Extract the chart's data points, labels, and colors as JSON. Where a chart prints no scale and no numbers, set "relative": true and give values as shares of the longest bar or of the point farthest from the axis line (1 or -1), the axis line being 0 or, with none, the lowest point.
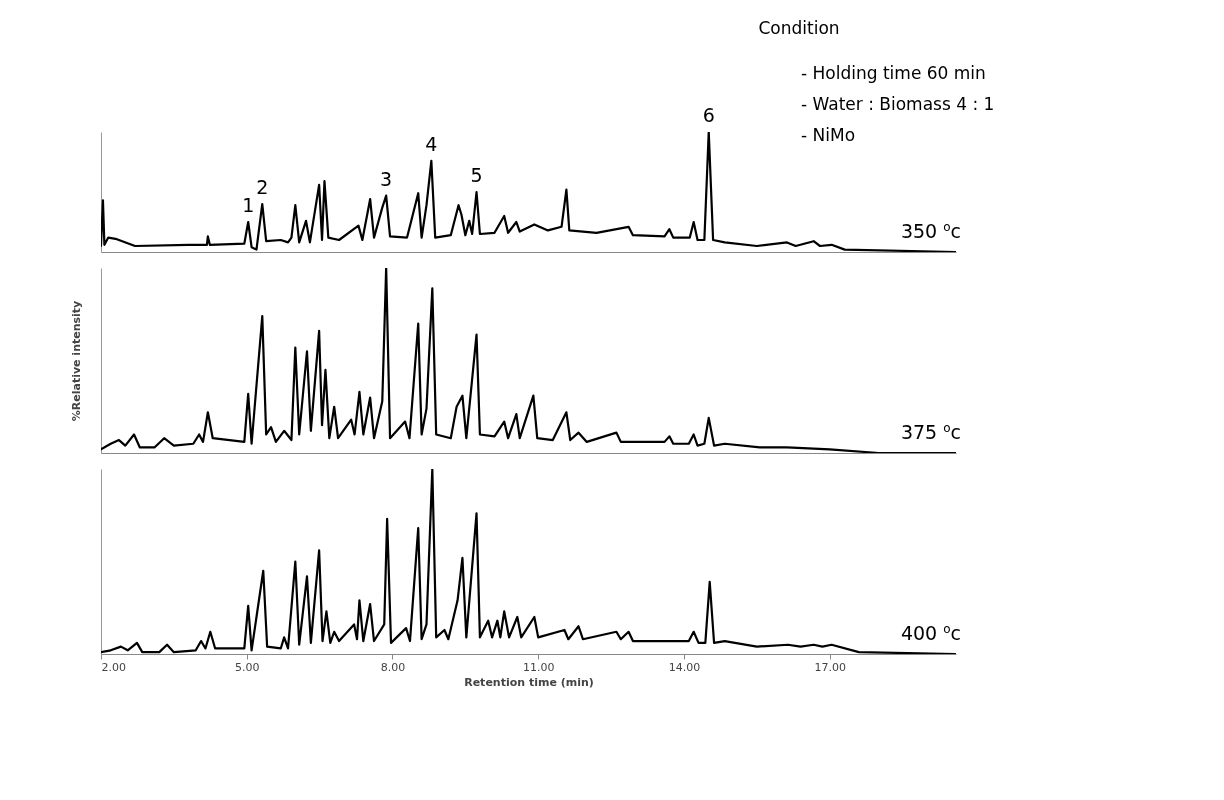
{
  "chart_data": [
    {
      "type": "line",
      "relative": true,
      "xlim": [
        2,
        19.6
      ],
      "tick_labels": false,
      "series": [
        {
          "color": "#000000",
          "x": [
            2.0,
            2.04,
            2.07,
            2.15,
            2.3,
            2.7,
            3.8,
            4.18,
            4.2,
            4.24,
            4.95,
            5.03,
            5.1,
            5.2,
            5.32,
            5.4,
            5.7,
            5.85,
            5.92,
            6.0,
            6.08,
            6.22,
            6.3,
            6.49,
            6.55,
            6.6,
            6.68,
            6.9,
            7.3,
            7.38,
            7.54,
            7.62,
            7.79,
            7.87,
            7.95,
            8.3,
            8.53,
            8.6,
            8.7,
            8.8,
            8.88,
            9.2,
            9.36,
            9.42,
            9.5,
            9.58,
            9.64,
            9.73,
            9.8,
            10.1,
            10.3,
            10.38,
            10.55,
            10.62,
            10.92,
            11.2,
            11.48,
            11.58,
            11.64,
            12.2,
            12.86,
            12.95,
            13.6,
            13.7,
            13.78,
            14.12,
            14.2,
            14.28,
            14.42,
            14.51,
            14.6,
            14.84,
            15.5,
            16.12,
            16.3,
            16.67,
            16.8,
            17.04,
            17.31,
            19.6
          ],
          "values": [
            0.05,
            0.43,
            0.06,
            0.12,
            0.11,
            0.05,
            0.06,
            0.06,
            0.13,
            0.06,
            0.07,
            0.25,
            0.04,
            0.02,
            0.4,
            0.09,
            0.1,
            0.08,
            0.12,
            0.39,
            0.08,
            0.26,
            0.08,
            0.56,
            0.1,
            0.59,
            0.12,
            0.1,
            0.22,
            0.1,
            0.44,
            0.12,
            0.37,
            0.47,
            0.13,
            0.12,
            0.49,
            0.12,
            0.39,
            0.76,
            0.12,
            0.14,
            0.39,
            0.31,
            0.14,
            0.26,
            0.15,
            0.5,
            0.15,
            0.16,
            0.3,
            0.16,
            0.25,
            0.17,
            0.23,
            0.18,
            0.21,
            0.52,
            0.18,
            0.16,
            0.21,
            0.14,
            0.13,
            0.19,
            0.12,
            0.12,
            0.25,
            0.1,
            0.1,
            1.0,
            0.1,
            0.08,
            0.05,
            0.08,
            0.05,
            0.09,
            0.05,
            0.06,
            0.02,
            0.0
          ]
        }
      ],
      "annotations": [
        "Condition",
        "-     Holding time 60 min",
        "-     Water : Biomass  4 : 1",
        "-     NiMo",
        {
          "text": "1",
          "x": 5.03,
          "y": 0.25
        },
        {
          "text": "2",
          "x": 5.32,
          "y": 0.4
        },
        {
          "text": "3",
          "x": 7.87,
          "y": 0.47
        },
        {
          "text": "4",
          "x": 8.8,
          "y": 0.76
        },
        {
          "text": "5",
          "x": 9.73,
          "y": 0.5
        },
        {
          "text": "6",
          "x": 14.51,
          "y": 1.0
        },
        "350 $^{o}$c"
      ]
    },
    {
      "type": "line",
      "relative": true,
      "ylabel": "%Relative intensity",
      "xlim": [
        2,
        19.6
      ],
      "tick_labels": false,
      "series": [
        {
          "color": "#000000",
          "x": [
            2.0,
            2.2,
            2.37,
            2.5,
            2.68,
            2.8,
            3.1,
            3.3,
            3.5,
            3.9,
            4.02,
            4.1,
            4.2,
            4.3,
            4.95,
            5.03,
            5.1,
            5.32,
            5.4,
            5.5,
            5.6,
            5.77,
            5.92,
            6.0,
            6.08,
            6.24,
            6.32,
            6.49,
            6.55,
            6.62,
            6.7,
            6.8,
            6.88,
            7.15,
            7.22,
            7.32,
            7.4,
            7.54,
            7.62,
            7.79,
            7.87,
            7.95,
            8.26,
            8.35,
            8.53,
            8.6,
            8.7,
            8.82,
            8.9,
            9.2,
            9.32,
            9.44,
            9.52,
            9.73,
            9.8,
            10.1,
            10.3,
            10.38,
            10.55,
            10.62,
            10.9,
            10.98,
            11.3,
            11.58,
            11.66,
            11.83,
            12.0,
            12.61,
            12.7,
            13.6,
            13.7,
            13.78,
            14.1,
            14.2,
            14.28,
            14.42,
            14.51,
            14.62,
            14.84,
            15.56,
            16.12,
            17.0,
            18.01,
            19.6
          ],
          "values": [
            0.02,
            0.05,
            0.07,
            0.04,
            0.1,
            0.03,
            0.03,
            0.08,
            0.04,
            0.05,
            0.1,
            0.06,
            0.22,
            0.08,
            0.06,
            0.32,
            0.05,
            0.74,
            0.1,
            0.14,
            0.06,
            0.12,
            0.07,
            0.57,
            0.1,
            0.55,
            0.12,
            0.66,
            0.15,
            0.45,
            0.08,
            0.25,
            0.08,
            0.18,
            0.1,
            0.33,
            0.1,
            0.3,
            0.08,
            0.28,
            1.0,
            0.08,
            0.17,
            0.08,
            0.7,
            0.1,
            0.24,
            0.89,
            0.1,
            0.08,
            0.25,
            0.31,
            0.08,
            0.64,
            0.1,
            0.09,
            0.17,
            0.08,
            0.21,
            0.08,
            0.31,
            0.08,
            0.07,
            0.22,
            0.07,
            0.11,
            0.06,
            0.11,
            0.06,
            0.06,
            0.09,
            0.05,
            0.05,
            0.1,
            0.04,
            0.05,
            0.19,
            0.04,
            0.05,
            0.03,
            0.03,
            0.02,
            0.0,
            0.0
          ]
        }
      ],
      "annotations": [
        "375 $^{o}$c"
      ]
    },
    {
      "type": "line",
      "relative": true,
      "xlabel": "Retention time (min)",
      "xlim": [
        2,
        19.6
      ],
      "xticks": [
        {
          "value": 2,
          "label": "2.00"
        },
        {
          "value": 5,
          "label": "5.00"
        },
        {
          "value": 8,
          "label": "8.00"
        },
        {
          "value": 11,
          "label": "11.00"
        },
        {
          "value": 14,
          "label": "14.00"
        },
        {
          "value": 17,
          "label": "17.00"
        }
      ],
      "tick_labels": "x",
      "series": [
        {
          "color": "#000000",
          "x": [
            2.0,
            2.2,
            2.41,
            2.55,
            2.74,
            2.85,
            3.2,
            3.36,
            3.5,
            3.95,
            4.06,
            4.15,
            4.25,
            4.35,
            4.95,
            5.03,
            5.1,
            5.34,
            5.42,
            5.7,
            5.77,
            5.85,
            6.0,
            6.08,
            6.24,
            6.32,
            6.49,
            6.56,
            6.64,
            6.72,
            6.8,
            6.9,
            7.21,
            7.27,
            7.32,
            7.4,
            7.54,
            7.62,
            7.83,
            7.89,
            7.97,
            8.28,
            8.36,
            8.53,
            8.6,
            8.7,
            8.82,
            8.9,
            9.07,
            9.15,
            9.34,
            9.44,
            9.52,
            9.73,
            9.8,
            9.97,
            10.05,
            10.16,
            10.22,
            10.3,
            10.4,
            10.57,
            10.65,
            10.92,
            11.0,
            11.54,
            11.62,
            11.83,
            11.92,
            12.61,
            12.7,
            12.86,
            12.95,
            14.1,
            14.2,
            14.3,
            14.44,
            14.53,
            14.62,
            14.84,
            15.5,
            16.14,
            16.4,
            16.67,
            16.85,
            17.04,
            17.6,
            19.58
          ],
          "values": [
            0.01,
            0.02,
            0.04,
            0.02,
            0.06,
            0.01,
            0.01,
            0.05,
            0.01,
            0.02,
            0.07,
            0.03,
            0.12,
            0.03,
            0.03,
            0.26,
            0.02,
            0.45,
            0.04,
            0.03,
            0.09,
            0.03,
            0.5,
            0.05,
            0.42,
            0.06,
            0.56,
            0.07,
            0.23,
            0.06,
            0.12,
            0.07,
            0.16,
            0.08,
            0.29,
            0.07,
            0.27,
            0.07,
            0.16,
            0.73,
            0.06,
            0.14,
            0.07,
            0.68,
            0.08,
            0.16,
            1.0,
            0.09,
            0.13,
            0.08,
            0.29,
            0.52,
            0.09,
            0.76,
            0.09,
            0.18,
            0.09,
            0.18,
            0.09,
            0.23,
            0.09,
            0.2,
            0.09,
            0.2,
            0.09,
            0.13,
            0.08,
            0.15,
            0.08,
            0.12,
            0.08,
            0.12,
            0.07,
            0.07,
            0.12,
            0.06,
            0.06,
            0.39,
            0.06,
            0.07,
            0.04,
            0.05,
            0.04,
            0.05,
            0.04,
            0.05,
            0.01,
            0.0
          ]
        }
      ],
      "annotations": [
        "400 $^{o}$c"
      ]
    }
  ]
}
